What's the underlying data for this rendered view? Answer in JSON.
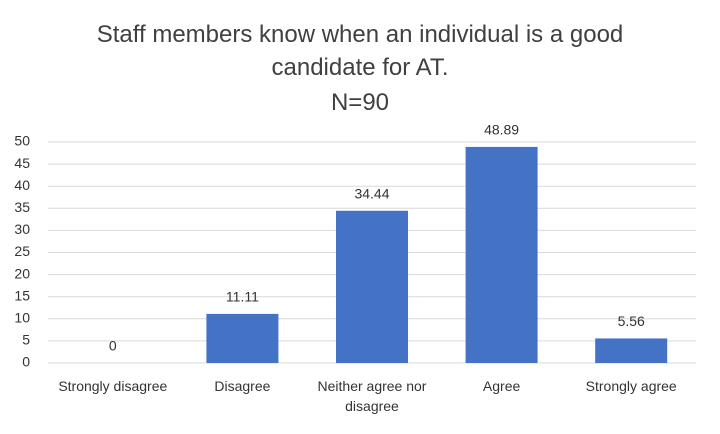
{
  "chart_data": {
    "type": "bar",
    "title": "Staff members know when an individual is a good candidate for AT.",
    "subtitle": "N=90",
    "categories": [
      "Strongly disagree",
      "Disagree",
      "Neither agree nor disagree",
      "Agree",
      "Strongly agree"
    ],
    "values": [
      0,
      11.11,
      34.44,
      48.89,
      5.56
    ],
    "color": "#4472c4",
    "ylim": [
      0,
      50
    ],
    "yticks": [
      0,
      5,
      10,
      15,
      20,
      25,
      30,
      35,
      40,
      45,
      50
    ],
    "grid": true
  }
}
